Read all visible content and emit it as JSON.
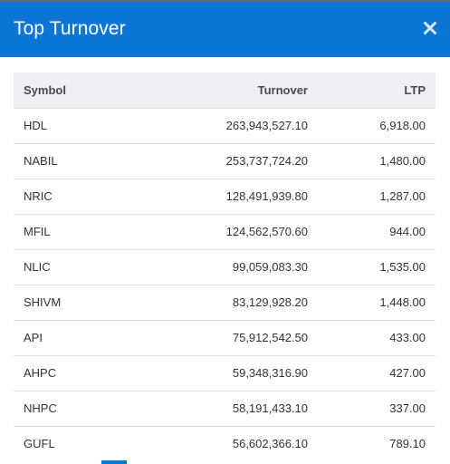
{
  "dialog": {
    "title": "Top Turnover",
    "accent_color": "#0b76d6"
  },
  "table": {
    "headers": {
      "symbol": "Symbol",
      "turnover": "Turnover",
      "ltp": "LTP"
    },
    "rows": [
      {
        "symbol": "HDL",
        "turnover": "263,943,527.10",
        "ltp": "6,918.00"
      },
      {
        "symbol": "NABIL",
        "turnover": "253,737,724.20",
        "ltp": "1,480.00"
      },
      {
        "symbol": "NRIC",
        "turnover": "128,491,939.80",
        "ltp": "1,287.00"
      },
      {
        "symbol": "MFIL",
        "turnover": "124,562,570.60",
        "ltp": "944.00"
      },
      {
        "symbol": "NLIC",
        "turnover": "99,059,083.30",
        "ltp": "1,535.00"
      },
      {
        "symbol": "SHIVM",
        "turnover": "83,129,928.20",
        "ltp": "1,448.00"
      },
      {
        "symbol": "API",
        "turnover": "75,912,542.50",
        "ltp": "433.00"
      },
      {
        "symbol": "AHPC",
        "turnover": "59,348,316.90",
        "ltp": "427.00"
      },
      {
        "symbol": "NHPC",
        "turnover": "58,191,433.10",
        "ltp": "337.00"
      },
      {
        "symbol": "GUFL",
        "turnover": "56,602,366.10",
        "ltp": "789.10"
      }
    ]
  }
}
